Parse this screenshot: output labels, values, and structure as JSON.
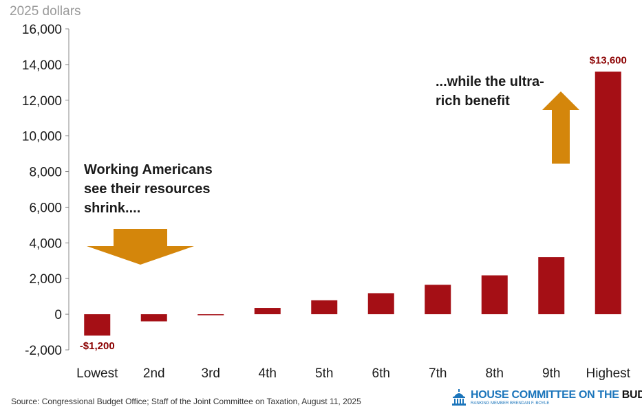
{
  "units_label": "2025 dollars",
  "chart_data": {
    "type": "bar",
    "categories": [
      "Lowest",
      "2nd",
      "3rd",
      "4th",
      "5th",
      "6th",
      "7th",
      "8th",
      "9th",
      "Highest"
    ],
    "values": [
      -1200,
      -400,
      -50,
      350,
      780,
      1180,
      1650,
      2180,
      3200,
      13600
    ],
    "ylim": [
      -2000,
      16000
    ],
    "yticks": [
      -2000,
      0,
      2000,
      4000,
      6000,
      8000,
      10000,
      12000,
      14000,
      16000
    ],
    "ytick_labels": [
      "-2,000",
      "0",
      "2,000",
      "4,000",
      "6,000",
      "8,000",
      "10,000",
      "12,000",
      "14,000",
      "16,000"
    ],
    "data_labels": [
      {
        "category": "Lowest",
        "text": "-$1,200"
      },
      {
        "category": "Highest",
        "text": "$13,600"
      }
    ],
    "bar_color": "#a50f15",
    "label_color": "#8b0000",
    "grid": false
  },
  "annotations": {
    "left_text": [
      "Working Americans",
      "see their resources",
      "shrink...."
    ],
    "right_text": [
      "...while the ultra-",
      "rich benefit"
    ],
    "arrow_color": "#d4860b"
  },
  "source": "Source: Congressional Budget Office; Staff of the Joint Committee on Taxation, August 11, 2025",
  "logo": {
    "name_main": "HOUSE COMMITTEE ON THE",
    "name_accent": "BUDGET",
    "subtitle": "RANKING MEMBER BRENDAN F. BOYLE",
    "icon": "capitol-dome-icon",
    "color": "#1b75bb"
  }
}
